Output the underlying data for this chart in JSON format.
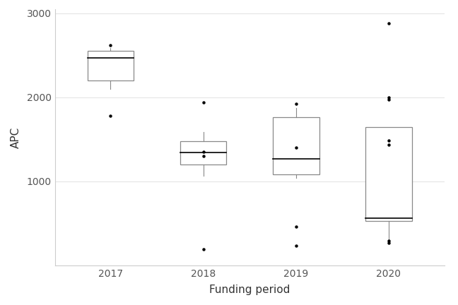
{
  "title": "",
  "xlabel": "Funding period",
  "ylabel": "APC",
  "xlim": [
    0.4,
    4.6
  ],
  "ylim": [
    0,
    3050
  ],
  "yticks": [
    1000,
    2000,
    3000
  ],
  "background_color": "#ffffff",
  "grid_color": "#e5e5e5",
  "box_color": "#888888",
  "median_color": "#000000",
  "whisker_color": "#888888",
  "flier_color": "#000000",
  "categories": [
    "2017",
    "2018",
    "2019",
    "2020"
  ],
  "boxes": [
    {
      "q1": 2200,
      "median": 2470,
      "q3": 2555,
      "whisker_low": 2100,
      "whisker_high": 2590,
      "outliers": [
        1780,
        2620
      ]
    },
    {
      "q1": 1200,
      "median": 1340,
      "q3": 1480,
      "whisker_low": 1070,
      "whisker_high": 1590,
      "outliers": [
        190,
        1940,
        1350,
        1305
      ]
    },
    {
      "q1": 1080,
      "median": 1265,
      "q3": 1760,
      "whisker_low": 1040,
      "whisker_high": 1870,
      "outliers": [
        460,
        230,
        1920,
        1400
      ]
    },
    {
      "q1": 530,
      "median": 565,
      "q3": 1645,
      "whisker_low": 305,
      "whisker_high": 1645,
      "outliers": [
        265,
        290,
        1490,
        1440,
        2000,
        1970,
        2880
      ]
    }
  ]
}
